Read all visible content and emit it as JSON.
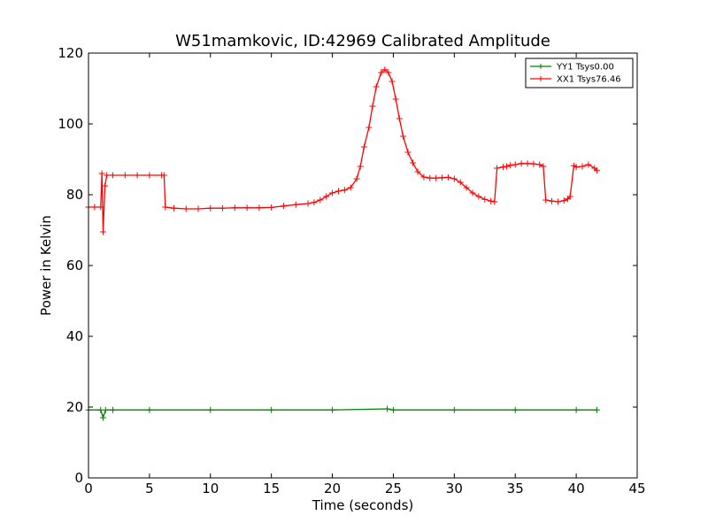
{
  "chart_data": {
    "type": "line",
    "title": "W51mamkovic, ID:42969 Calibrated Amplitude",
    "xlabel": "Time (seconds)",
    "ylabel": "Power in Kelvin",
    "xlim": [
      0,
      45
    ],
    "ylim": [
      0,
      120
    ],
    "xticks": [
      0,
      5,
      10,
      15,
      20,
      25,
      30,
      35,
      40,
      45
    ],
    "yticks": [
      0,
      20,
      40,
      60,
      80,
      100,
      120
    ],
    "grid": false,
    "legend_position": "top-right",
    "series": [
      {
        "name": "YY1 Tsys0.00",
        "color": "#008000",
        "marker": "+",
        "x": [
          0,
          1,
          1.2,
          1.4,
          2,
          5,
          10,
          15,
          20,
          24.5,
          25,
          30,
          35,
          40,
          41.7
        ],
        "y": [
          19.2,
          19.2,
          17.0,
          19.2,
          19.2,
          19.2,
          19.2,
          19.2,
          19.2,
          19.5,
          19.2,
          19.2,
          19.2,
          19.2,
          19.2
        ]
      },
      {
        "name": "XX1 Tsys76.46",
        "color": "#ff0000",
        "marker": "+",
        "x": [
          0,
          0.5,
          1.0,
          1.1,
          1.2,
          1.35,
          1.5,
          2,
          3,
          4,
          5,
          6,
          6.2,
          6.3,
          7,
          8,
          9,
          10,
          11,
          12,
          13,
          14,
          15,
          16,
          17,
          18,
          18.5,
          19,
          19.5,
          20,
          20.5,
          21,
          21.5,
          22,
          22.3,
          22.6,
          23,
          23.3,
          23.6,
          24,
          24.3,
          24.6,
          24.9,
          25.2,
          25.5,
          25.8,
          26.2,
          26.6,
          27,
          27.5,
          28,
          28.5,
          29,
          29.5,
          30,
          30.5,
          31,
          31.5,
          32,
          32.5,
          33,
          33.3,
          33.5,
          34,
          34.3,
          34.6,
          35,
          35.5,
          36,
          36.5,
          37,
          37.3,
          37.5,
          38,
          38.5,
          39,
          39.3,
          39.5,
          39.8,
          40,
          40.5,
          41,
          41.5,
          41.7
        ],
        "y": [
          76.5,
          76.5,
          76.5,
          86.0,
          69.5,
          82.5,
          85.5,
          85.5,
          85.5,
          85.5,
          85.5,
          85.5,
          85.5,
          76.5,
          76.2,
          76.0,
          76.0,
          76.2,
          76.2,
          76.3,
          76.3,
          76.3,
          76.4,
          76.8,
          77.2,
          77.5,
          77.8,
          78.5,
          79.5,
          80.5,
          81.0,
          81.3,
          82.0,
          84.5,
          88.0,
          93.5,
          99.0,
          105.0,
          110.5,
          114.5,
          115.3,
          114.5,
          112.0,
          107.0,
          101.5,
          96.5,
          92.0,
          89.0,
          86.5,
          85.0,
          84.7,
          84.7,
          84.8,
          84.9,
          84.5,
          83.5,
          82.0,
          80.5,
          79.5,
          78.7,
          78.2,
          78.0,
          87.5,
          87.8,
          88.0,
          88.3,
          88.5,
          88.8,
          88.8,
          88.7,
          88.5,
          88.0,
          78.5,
          78.2,
          78.0,
          78.3,
          78.8,
          79.5,
          88.2,
          87.8,
          88.0,
          88.5,
          87.5,
          86.8
        ]
      }
    ]
  }
}
